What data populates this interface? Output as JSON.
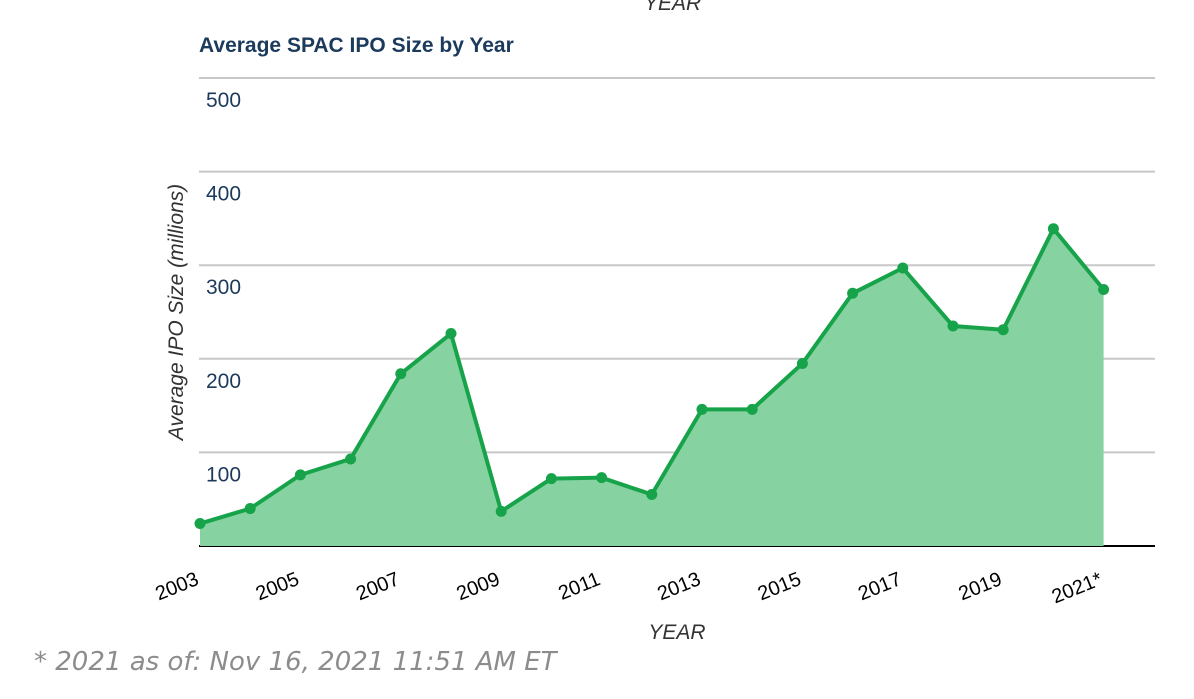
{
  "header": {
    "top_label": "YEAR"
  },
  "chart_data": {
    "type": "area",
    "title": "Average SPAC IPO Size by Year",
    "xlabel": "YEAR",
    "ylabel": "Average IPO Size (millions)",
    "ylim": [
      0,
      500
    ],
    "yticks": [
      100,
      200,
      300,
      400,
      500
    ],
    "xtick_labels": [
      "2003",
      "2005",
      "2007",
      "2009",
      "2011",
      "2013",
      "2015",
      "2017",
      "2019",
      "2021*"
    ],
    "x": [
      2003,
      2004,
      2005,
      2006,
      2007,
      2008,
      2009,
      2010,
      2011,
      2012,
      2013,
      2014,
      2015,
      2016,
      2017,
      2018,
      2019,
      2020,
      2021
    ],
    "values": [
      24,
      40,
      76,
      93,
      184,
      227,
      37,
      72,
      73,
      55,
      146,
      146,
      195,
      270,
      297,
      235,
      231,
      339,
      274
    ],
    "grid": true,
    "legend": "none",
    "colors": {
      "line": "#17a34a",
      "fill": "#86d3a1",
      "grid": "#c8c8c8",
      "axis": "#000000",
      "tick_text": "#1b3a5c"
    }
  },
  "footnote": "*  2021 as of: Nov 16, 2021 11:51 AM ET"
}
